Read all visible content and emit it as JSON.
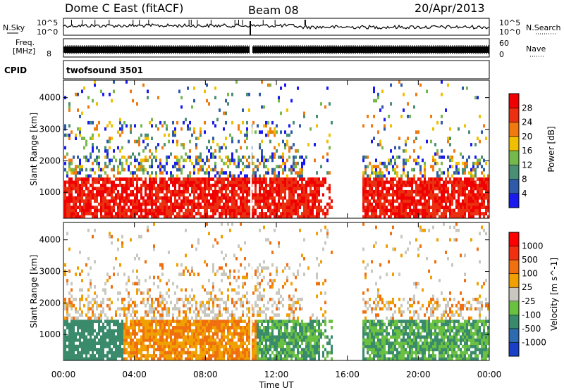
{
  "header": {
    "station": "Dome C East (fitACF)",
    "beam": "Beam 08",
    "date": "20/Apr/2013"
  },
  "strips": {
    "nsky_label": "N.Sky",
    "nsky_ticks": [
      "10^5",
      "10^0"
    ],
    "nsearch_label": "N.Search",
    "nsearch_ticks": [
      "10^5",
      "10^0"
    ],
    "freq_label_1": "Freq.",
    "freq_label_2": "[MHz]",
    "freq_tick": "8",
    "nave_label": "Nave",
    "nave_ticks": [
      "60",
      "0"
    ],
    "cpid_label": "CPID",
    "cpid_value": "twofsound 3501"
  },
  "chart_data": [
    {
      "type": "heatmap",
      "name": "power",
      "ylabel": "Slant Range [km]",
      "xlabel": "Time UT",
      "ylim": [
        180,
        4550
      ],
      "y_ticks": [
        "1000",
        "2000",
        "3000",
        "4000"
      ],
      "x_ticks": [
        "00:00",
        "04:00",
        "08:00",
        "12:00",
        "16:00",
        "20:00",
        "00:00"
      ],
      "colorbar": {
        "label": "Power [dB]",
        "ticks": [
          "4",
          "8",
          "12",
          "16",
          "20",
          "24",
          "28"
        ],
        "colors": [
          "#1a1af0",
          "#2f5aa8",
          "#4a8f74",
          "#75b84c",
          "#f0c000",
          "#f07a10",
          "#ea3010",
          "#f00000"
        ]
      }
    },
    {
      "type": "heatmap",
      "name": "velocity",
      "ylabel": "Slant Range [km]",
      "xlabel": "Time UT",
      "ylim": [
        180,
        4550
      ],
      "y_ticks": [
        "1000",
        "2000",
        "3000",
        "4000"
      ],
      "x_ticks": [
        "00:00",
        "04:00",
        "08:00",
        "12:00",
        "16:00",
        "20:00",
        "00:00"
      ],
      "colorbar": {
        "label": "Velocity [m s^-1]",
        "ticks": [
          "1000",
          "500",
          "100",
          "25",
          "-25",
          "-100",
          "-500",
          "-1000"
        ],
        "colors": [
          "#1a40c8",
          "#2e6ab0",
          "#3a8a6c",
          "#6ac040",
          "#c8c8c0",
          "#f0a000",
          "#f07010",
          "#f03010",
          "#ff0000"
        ]
      }
    }
  ]
}
